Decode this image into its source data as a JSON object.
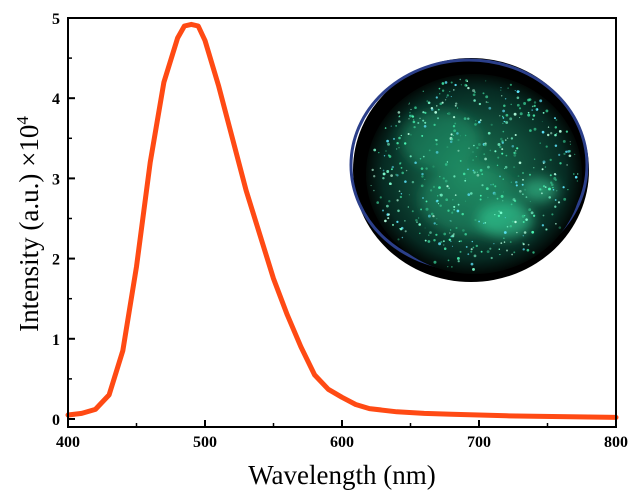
{
  "chart_data": {
    "type": "line",
    "xlabel": "Wavelength (nm)",
    "ylabel_main": "Intensity (a.u.) ×10",
    "ylabel_exponent": "4",
    "xlim": [
      400,
      800
    ],
    "ylim": [
      -0.1,
      5
    ],
    "x_ticks": [
      "400",
      "500",
      "600",
      "700",
      "800"
    ],
    "y_ticks": [
      "0",
      "1",
      "2",
      "3",
      "4",
      "5"
    ],
    "grid": false,
    "legend": "none",
    "line_color": "#ff4a14",
    "inset_image": "photo of petri dish with green photoluminescent particles under UV light",
    "series": [
      {
        "x": [
          400,
          410,
          420,
          430,
          440,
          450,
          460,
          470,
          480,
          485,
          490,
          495,
          500,
          510,
          520,
          530,
          540,
          550,
          560,
          570,
          580,
          590,
          600,
          610,
          620,
          640,
          660,
          680,
          700,
          720,
          740,
          760,
          780,
          800
        ],
        "values": [
          0.05,
          0.07,
          0.12,
          0.3,
          0.85,
          1.9,
          3.2,
          4.2,
          4.75,
          4.9,
          4.92,
          4.9,
          4.72,
          4.15,
          3.5,
          2.85,
          2.3,
          1.75,
          1.3,
          0.9,
          0.55,
          0.37,
          0.27,
          0.18,
          0.13,
          0.09,
          0.07,
          0.06,
          0.05,
          0.04,
          0.035,
          0.03,
          0.025,
          0.02
        ]
      }
    ]
  }
}
